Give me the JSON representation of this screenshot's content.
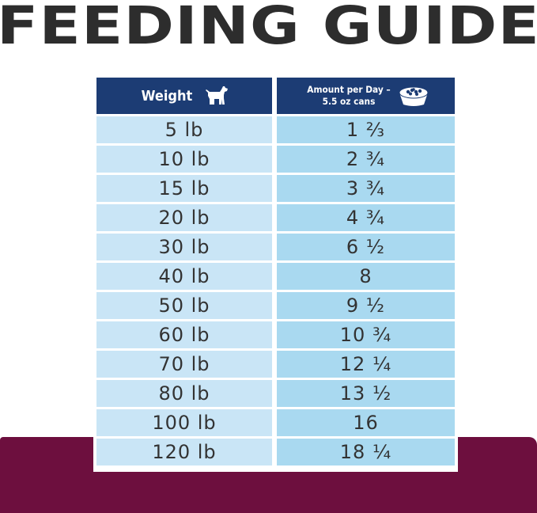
{
  "title": "FEEDING GUIDE",
  "table": {
    "header_weight": "Weight",
    "header_amount_line1": "Amount per Day –",
    "header_amount_line2": "5.5 oz cans",
    "weight_icon": "dog-icon",
    "amount_icon": "food-bowl-icon",
    "rows": [
      {
        "weight": "5 lb",
        "amount": "1 ⅔"
      },
      {
        "weight": "10 lb",
        "amount": "2 ¾"
      },
      {
        "weight": "15 lb",
        "amount": "3 ¾"
      },
      {
        "weight": "20 lb",
        "amount": "4 ¾"
      },
      {
        "weight": "30 lb",
        "amount": "6 ½"
      },
      {
        "weight": "40 lb",
        "amount": "8"
      },
      {
        "weight": "50 lb",
        "amount": "9 ½"
      },
      {
        "weight": "60 lb",
        "amount": "10 ¾"
      },
      {
        "weight": "70 lb",
        "amount": "12 ¼"
      },
      {
        "weight": "80 lb",
        "amount": "13 ½"
      },
      {
        "weight": "100 lb",
        "amount": "16"
      },
      {
        "weight": "120 lb",
        "amount": "18 ¼"
      }
    ]
  },
  "colors": {
    "title": "#2d2d2d",
    "header_bg": "#1c3c74",
    "weight_cell_bg": "#c9e5f6",
    "amount_cell_bg": "#a9d9f0",
    "bottom_band": "#6d0f3e"
  }
}
